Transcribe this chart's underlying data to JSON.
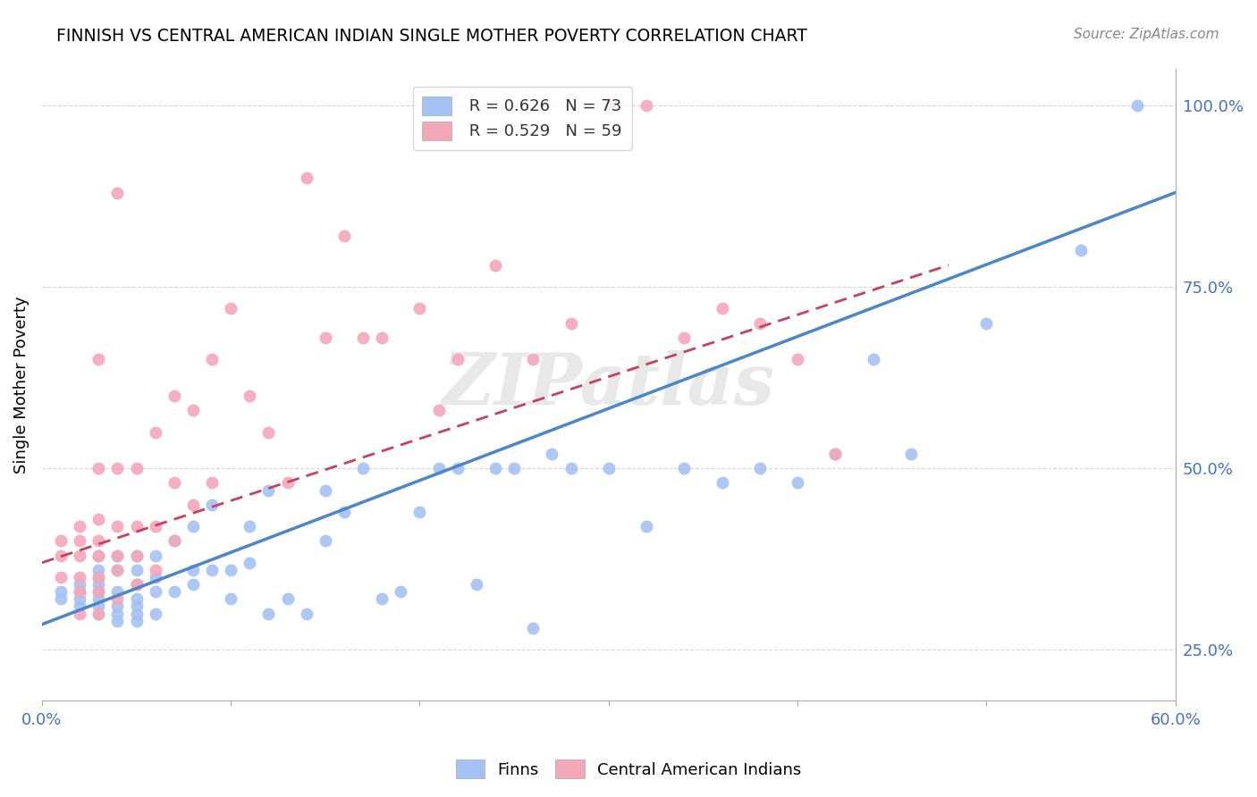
{
  "title": "FINNISH VS CENTRAL AMERICAN INDIAN SINGLE MOTHER POVERTY CORRELATION CHART",
  "source": "Source: ZipAtlas.com",
  "ylabel": "Single Mother Poverty",
  "right_yticks": [
    "25.0%",
    "50.0%",
    "75.0%",
    "100.0%"
  ],
  "right_ytick_vals": [
    0.25,
    0.5,
    0.75,
    1.0
  ],
  "xlim": [
    0.0,
    0.6
  ],
  "ylim": [
    0.18,
    1.05
  ],
  "legend_blue_r": "R = 0.626",
  "legend_blue_n": "N = 73",
  "legend_pink_r": "R = 0.529",
  "legend_pink_n": "N = 59",
  "blue_color": "#a4c2f4",
  "pink_color": "#f4a7b9",
  "blue_line_color": "#4a86c8",
  "pink_line_color": "#c9405a",
  "watermark": "ZIPatlas",
  "blue_line_x0": 0.0,
  "blue_line_y0": 0.285,
  "blue_line_x1": 0.6,
  "blue_line_y1": 0.88,
  "pink_line_x0": 0.0,
  "pink_line_y0": 0.37,
  "pink_line_x1": 0.48,
  "pink_line_y1": 0.78,
  "finns_x": [
    0.01,
    0.01,
    0.02,
    0.02,
    0.02,
    0.02,
    0.03,
    0.03,
    0.03,
    0.03,
    0.03,
    0.03,
    0.03,
    0.03,
    0.04,
    0.04,
    0.04,
    0.04,
    0.04,
    0.04,
    0.05,
    0.05,
    0.05,
    0.05,
    0.05,
    0.05,
    0.05,
    0.06,
    0.06,
    0.06,
    0.06,
    0.07,
    0.07,
    0.08,
    0.08,
    0.08,
    0.09,
    0.09,
    0.1,
    0.1,
    0.11,
    0.11,
    0.12,
    0.12,
    0.13,
    0.14,
    0.15,
    0.15,
    0.16,
    0.17,
    0.18,
    0.19,
    0.2,
    0.21,
    0.22,
    0.23,
    0.24,
    0.25,
    0.26,
    0.27,
    0.28,
    0.3,
    0.32,
    0.34,
    0.36,
    0.38,
    0.4,
    0.42,
    0.44,
    0.46,
    0.5,
    0.55,
    0.58
  ],
  "finns_y": [
    0.32,
    0.33,
    0.31,
    0.32,
    0.33,
    0.34,
    0.3,
    0.31,
    0.32,
    0.33,
    0.34,
    0.35,
    0.36,
    0.38,
    0.29,
    0.3,
    0.31,
    0.33,
    0.36,
    0.38,
    0.29,
    0.3,
    0.31,
    0.32,
    0.34,
    0.36,
    0.38,
    0.3,
    0.33,
    0.35,
    0.38,
    0.33,
    0.4,
    0.34,
    0.36,
    0.42,
    0.36,
    0.45,
    0.32,
    0.36,
    0.37,
    0.42,
    0.3,
    0.47,
    0.32,
    0.3,
    0.4,
    0.47,
    0.44,
    0.5,
    0.32,
    0.33,
    0.44,
    0.5,
    0.5,
    0.34,
    0.5,
    0.5,
    0.28,
    0.52,
    0.5,
    0.5,
    0.42,
    0.5,
    0.48,
    0.5,
    0.48,
    0.52,
    0.65,
    0.52,
    0.7,
    0.8,
    1.0
  ],
  "central_american_x": [
    0.01,
    0.01,
    0.01,
    0.02,
    0.02,
    0.02,
    0.02,
    0.02,
    0.02,
    0.03,
    0.03,
    0.03,
    0.03,
    0.03,
    0.03,
    0.03,
    0.03,
    0.04,
    0.04,
    0.04,
    0.04,
    0.04,
    0.04,
    0.05,
    0.05,
    0.05,
    0.05,
    0.06,
    0.06,
    0.06,
    0.07,
    0.07,
    0.07,
    0.08,
    0.08,
    0.09,
    0.09,
    0.1,
    0.11,
    0.12,
    0.13,
    0.14,
    0.15,
    0.16,
    0.17,
    0.18,
    0.2,
    0.21,
    0.22,
    0.24,
    0.26,
    0.28,
    0.3,
    0.32,
    0.34,
    0.36,
    0.38,
    0.4,
    0.42
  ],
  "central_american_y": [
    0.35,
    0.38,
    0.4,
    0.3,
    0.33,
    0.35,
    0.38,
    0.4,
    0.42,
    0.3,
    0.33,
    0.35,
    0.38,
    0.4,
    0.43,
    0.5,
    0.65,
    0.32,
    0.36,
    0.38,
    0.42,
    0.5,
    0.88,
    0.34,
    0.38,
    0.42,
    0.5,
    0.36,
    0.42,
    0.55,
    0.4,
    0.48,
    0.6,
    0.45,
    0.58,
    0.48,
    0.65,
    0.72,
    0.6,
    0.55,
    0.48,
    0.9,
    0.68,
    0.82,
    0.68,
    0.68,
    0.72,
    0.58,
    0.65,
    0.78,
    0.65,
    0.7,
    1.0,
    1.0,
    0.68,
    0.72,
    0.7,
    0.65,
    0.52
  ]
}
